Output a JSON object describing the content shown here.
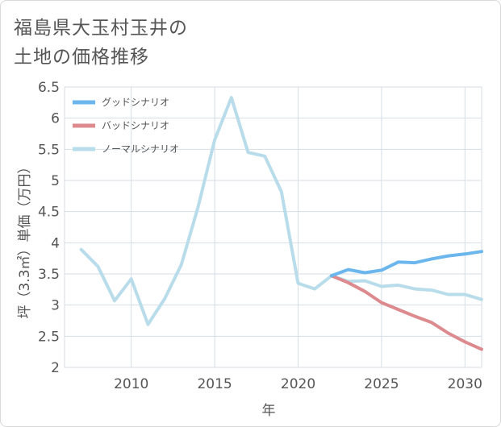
{
  "title_line1": "福島県大玉村玉井の",
  "title_line2": "土地の価格推移",
  "chart_data": {
    "type": "line",
    "xlabel": "年",
    "ylabel": "坪（3.3㎡）単価（万円）",
    "xlim": [
      2006,
      2031
    ],
    "ylim": [
      2,
      6.5
    ],
    "x_ticks": [
      2010,
      2015,
      2020,
      2025,
      2030
    ],
    "y_ticks": [
      2,
      2.5,
      3,
      3.5,
      4,
      4.5,
      5,
      5.5,
      6,
      6.5
    ],
    "grid": true,
    "legend_position": "top-left",
    "series": [
      {
        "name": "グッドシナリオ",
        "color": "#6bb6ec",
        "x": [
          2022,
          2023,
          2024,
          2025,
          2026,
          2027,
          2028,
          2029,
          2030,
          2031
        ],
        "y": [
          3.47,
          3.57,
          3.52,
          3.56,
          3.69,
          3.68,
          3.74,
          3.79,
          3.82,
          3.86
        ]
      },
      {
        "name": "バッドシナリオ",
        "color": "#dd8a8e",
        "x": [
          2022,
          2023,
          2024,
          2025,
          2026,
          2027,
          2028,
          2029,
          2030,
          2031
        ],
        "y": [
          3.47,
          3.36,
          3.22,
          3.04,
          2.93,
          2.82,
          2.72,
          2.55,
          2.41,
          2.29
        ]
      },
      {
        "name": "ノーマルシナリオ",
        "color": "#b9dceb",
        "x": [
          2007,
          2008,
          2009,
          2010,
          2011,
          2012,
          2013,
          2014,
          2015,
          2016,
          2017,
          2018,
          2019,
          2020,
          2021,
          2022,
          2023,
          2024,
          2025,
          2026,
          2027,
          2028,
          2029,
          2030,
          2031
        ],
        "y": [
          3.89,
          3.62,
          3.07,
          3.42,
          2.69,
          3.1,
          3.65,
          4.57,
          5.65,
          6.33,
          5.45,
          5.39,
          4.82,
          3.35,
          3.26,
          3.47,
          3.38,
          3.39,
          3.3,
          3.32,
          3.26,
          3.24,
          3.17,
          3.17,
          3.09
        ]
      }
    ]
  }
}
